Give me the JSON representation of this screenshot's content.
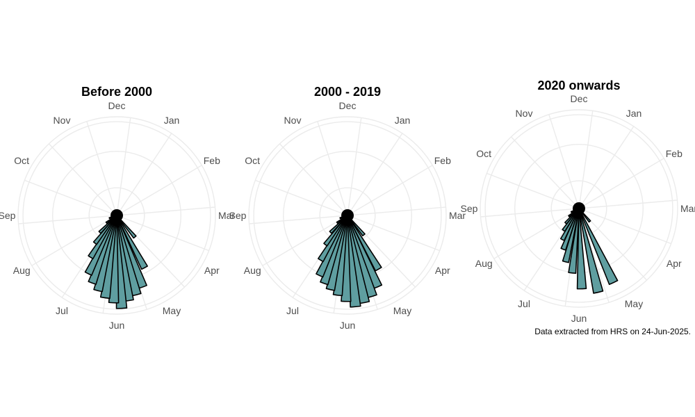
{
  "caption": "Data extracted from HRS on 24-Jun-2025.",
  "chart_data": [
    {
      "type": "bar",
      "subtype": "polar",
      "title": "Before 2000",
      "categories": [
        "Jan",
        "Feb",
        "Mar",
        "Apr",
        "May",
        "Jun",
        "Jul",
        "Aug",
        "Sep",
        "Oct",
        "Nov",
        "Dec"
      ],
      "bins": [
        {
          "angle": 140,
          "value": 1.0
        },
        {
          "angle": 152,
          "value": 2.1
        },
        {
          "angle": 160,
          "value": 2.7
        },
        {
          "angle": 166,
          "value": 2.9
        },
        {
          "angle": 172,
          "value": 3.05
        },
        {
          "angle": 177,
          "value": 3.3
        },
        {
          "angle": 182,
          "value": 3.1
        },
        {
          "angle": 188,
          "value": 2.95
        },
        {
          "angle": 194,
          "value": 2.75
        },
        {
          "angle": 200,
          "value": 2.55
        },
        {
          "angle": 206,
          "value": 2.3
        },
        {
          "angle": 212,
          "value": 1.75
        },
        {
          "angle": 218,
          "value": 1.25
        },
        {
          "angle": 225,
          "value": 0.85
        },
        {
          "angle": 235,
          "value": 0.45
        },
        {
          "angle": 250,
          "value": 0.28
        }
      ],
      "rmax": 3.5,
      "grid": true
    },
    {
      "type": "bar",
      "subtype": "polar",
      "title": "2000 - 2019",
      "categories": [
        "Jan",
        "Feb",
        "Mar",
        "Apr",
        "May",
        "Jun",
        "Jul",
        "Aug",
        "Sep",
        "Oct",
        "Nov",
        "Dec"
      ],
      "bins": [
        {
          "angle": 140,
          "value": 0.9
        },
        {
          "angle": 150,
          "value": 2.2
        },
        {
          "angle": 157,
          "value": 2.75
        },
        {
          "angle": 163,
          "value": 3.0
        },
        {
          "angle": 169,
          "value": 3.15
        },
        {
          "angle": 175,
          "value": 3.25
        },
        {
          "angle": 181,
          "value": 3.05
        },
        {
          "angle": 187,
          "value": 2.85
        },
        {
          "angle": 193,
          "value": 2.7
        },
        {
          "angle": 199,
          "value": 2.55
        },
        {
          "angle": 205,
          "value": 2.35
        },
        {
          "angle": 211,
          "value": 1.85
        },
        {
          "angle": 217,
          "value": 1.3
        },
        {
          "angle": 225,
          "value": 0.85
        },
        {
          "angle": 235,
          "value": 0.45
        },
        {
          "angle": 250,
          "value": 0.28
        }
      ],
      "rmax": 3.5,
      "grid": true
    },
    {
      "type": "bar",
      "subtype": "polar",
      "title": "2020 onwards",
      "categories": [
        "Jan",
        "Feb",
        "Mar",
        "Apr",
        "May",
        "Jun",
        "Jul",
        "Aug",
        "Sep",
        "Oct",
        "Nov",
        "Dec"
      ],
      "bins": [
        {
          "angle": 140,
          "value": 0.6
        },
        {
          "angle": 155,
          "value": 2.9
        },
        {
          "angle": 167,
          "value": 3.05
        },
        {
          "angle": 178,
          "value": 2.85
        },
        {
          "angle": 186,
          "value": 2.3
        },
        {
          "angle": 194,
          "value": 1.95
        },
        {
          "angle": 201,
          "value": 1.55
        },
        {
          "angle": 208,
          "value": 1.25
        },
        {
          "angle": 215,
          "value": 0.95
        },
        {
          "angle": 222,
          "value": 0.7
        },
        {
          "angle": 232,
          "value": 0.45
        },
        {
          "angle": 245,
          "value": 0.3
        }
      ],
      "rmax": 3.5,
      "grid": true
    }
  ],
  "colors": {
    "bar_fill": "#5f9ea0",
    "bar_stroke": "#000000",
    "grid": "#ebebeb",
    "label": "#4d4d4d"
  }
}
